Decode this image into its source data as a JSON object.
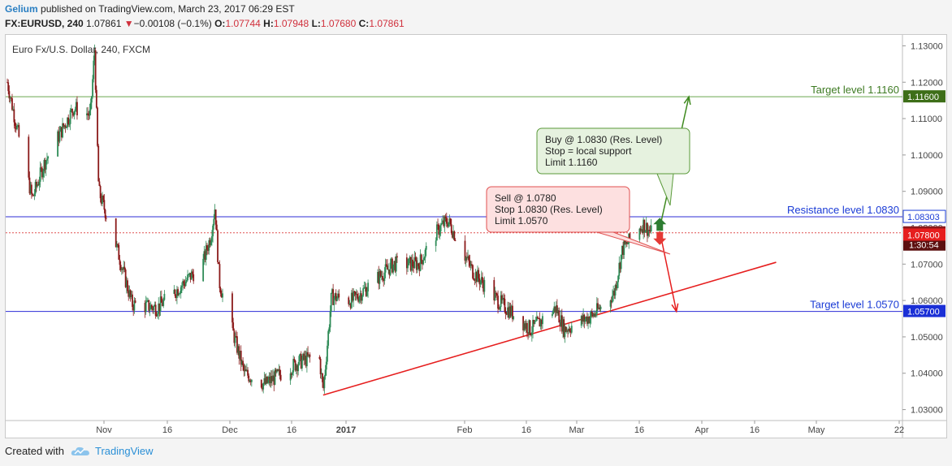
{
  "header": {
    "author": "Gelium",
    "published": "published on TradingView.com, March 23, 2017 06:29 EST",
    "symbol": "FX:EURUSD, 240",
    "last": "1.07861",
    "change": "−0.00108 (−0.1%)",
    "o_label": "O:",
    "o": "1.07744",
    "h_label": "H:",
    "h": "1.07948",
    "l_label": "L:",
    "l": "1.07680",
    "c_label": "C:",
    "c": "1.07861"
  },
  "footer": {
    "created_with": "Created with",
    "brand": "TradingView"
  },
  "colors": {
    "up": "#2e8b57",
    "down": "#8b1a1a",
    "green_line": "#6aa84f",
    "blue_line": "#2c2cd6",
    "red_line": "#e61e1e",
    "label_blue": "#1a3bd6",
    "label_green": "#3d7a22"
  },
  "chart_data": {
    "type": "candlestick",
    "title": "Euro Fx/U.S. Dollar, 240, FXCM",
    "y_range": [
      1.027,
      1.133
    ],
    "y_ticks": [
      1.03,
      1.04,
      1.05,
      1.06,
      1.07,
      1.08,
      1.09,
      1.1,
      1.11,
      1.12,
      1.13
    ],
    "x_ticks": [
      "Nov",
      "16",
      "Dec",
      "16",
      "2017",
      "Feb",
      "16",
      "Mar",
      "16",
      "Apr",
      "16",
      "May",
      "22"
    ],
    "series_path": [
      [
        "2016-10-19",
        1.12
      ],
      [
        "2016-10-21",
        1.109
      ],
      [
        "2016-10-25",
        1.088
      ],
      [
        "2016-10-28",
        1.098
      ],
      [
        "2016-11-04",
        1.113
      ],
      [
        "2016-11-08",
        1.111
      ],
      [
        "2016-11-09",
        1.129
      ],
      [
        "2016-11-10",
        1.09
      ],
      [
        "2016-11-14",
        1.076
      ],
      [
        "2016-11-18",
        1.059
      ],
      [
        "2016-11-24",
        1.058
      ],
      [
        "2016-11-28",
        1.062
      ],
      [
        "2016-12-05",
        1.07
      ],
      [
        "2016-12-07",
        1.078
      ],
      [
        "2016-12-08",
        1.086
      ],
      [
        "2016-12-09",
        1.065
      ],
      [
        "2016-12-15",
        1.04
      ],
      [
        "2016-12-20",
        1.037
      ],
      [
        "2016-12-28",
        1.043
      ],
      [
        "2017-01-02",
        1.045
      ],
      [
        "2017-01-03",
        1.035
      ],
      [
        "2017-01-05",
        1.061
      ],
      [
        "2017-01-10",
        1.06
      ],
      [
        "2017-01-20",
        1.07
      ],
      [
        "2017-01-26",
        1.07
      ],
      [
        "2017-01-31",
        1.08
      ],
      [
        "2017-02-02",
        1.082
      ],
      [
        "2017-02-08",
        1.068
      ],
      [
        "2017-02-14",
        1.06
      ],
      [
        "2017-02-22",
        1.052
      ],
      [
        "2017-02-28",
        1.058
      ],
      [
        "2017-03-02",
        1.052
      ],
      [
        "2017-03-09",
        1.056
      ],
      [
        "2017-03-14",
        1.062
      ],
      [
        "2017-03-16",
        1.074
      ],
      [
        "2017-03-21",
        1.081
      ],
      [
        "2017-03-23",
        1.0786
      ]
    ],
    "levels": [
      {
        "name": "Target level 1.1160",
        "value": 1.116,
        "color": "#6aa84f",
        "axis_label": "1.11600"
      },
      {
        "name": "Resistance level 1.0830",
        "value": 1.083,
        "color": "#2c2cd6",
        "axis_label": "1.08303"
      },
      {
        "name": "Target level 1.0570",
        "value": 1.057,
        "color": "#2c2cd6",
        "axis_label": "1.05700"
      }
    ],
    "current_price": {
      "value": 1.07861,
      "label": "1.07861",
      "countdown": "1:30:54"
    },
    "sell_stop_label": {
      "value": 1.078,
      "label": "1.07800"
    },
    "trendline": {
      "start": [
        "2017-01-03",
        1.034
      ],
      "end": [
        "2017-04-22",
        1.0705
      ]
    },
    "annotations": {
      "buy": [
        "Buy @ 1.0830 (Res. Level)",
        "Stop = local support",
        "Limit 1.1160"
      ],
      "sell": [
        "Sell @ 1.0780",
        "Stop 1.0830 (Res. Level)",
        "Limit 1.0570"
      ]
    },
    "arrows": [
      {
        "dir": "up",
        "from": [
          "2017-03-25",
          1.08
        ],
        "to": [
          "2017-04-01",
          1.116
        ]
      },
      {
        "dir": "down",
        "from": [
          "2017-03-25",
          1.079
        ],
        "to": [
          "2017-03-29",
          1.057
        ]
      }
    ]
  }
}
